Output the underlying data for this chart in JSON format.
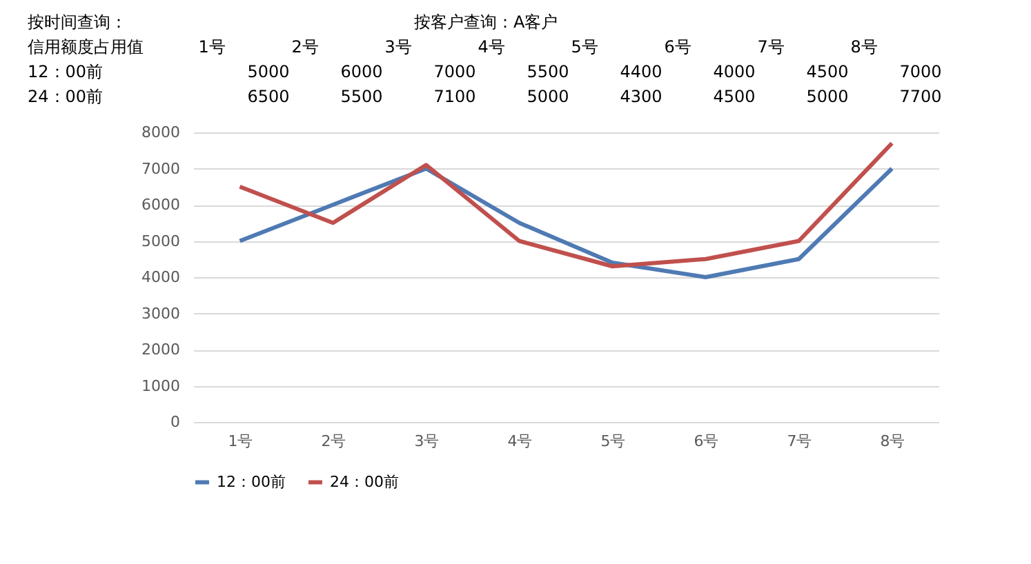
{
  "chart_data": {
    "type": "line",
    "annotations": [
      "按时间查询：",
      "按客户查询：A客户",
      "信用额度占用值"
    ],
    "categories": [
      "1号",
      "2号",
      "3号",
      "4号",
      "5号",
      "6号",
      "7号",
      "8号"
    ],
    "series": [
      {
        "name": "12：00前",
        "color": "#4f7ab3",
        "values": [
          5000,
          6000,
          7000,
          5500,
          4400,
          4000,
          4500,
          7000
        ]
      },
      {
        "name": "24：00前",
        "color": "#c0504d",
        "values": [
          6500,
          5500,
          7100,
          5000,
          4300,
          4500,
          5000,
          7700
        ]
      }
    ],
    "ylim": [
      0,
      8000
    ],
    "yticks": [
      0,
      1000,
      2000,
      3000,
      4000,
      5000,
      6000,
      7000,
      8000
    ],
    "grid": "y",
    "legend": "bottom",
    "marker": "none",
    "line_style": "solid",
    "data_labels": true
  }
}
